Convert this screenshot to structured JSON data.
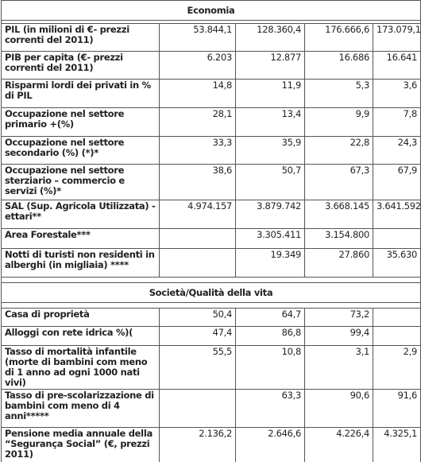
{
  "sections": [
    {
      "title": "Economia",
      "rows": [
        {
          "label": "PIL (in milioni di €- prezzi correnti del 2011)",
          "values": [
            "53.844,1",
            "128.360,4",
            "176.666,6",
            "173.079,1"
          ]
        },
        {
          "label": "PIB per capita (€- prezzi correnti del 2011)",
          "values": [
            "6.203",
            "12.877",
            "16.686",
            "16.641"
          ]
        },
        {
          "label": "Risparmi lordi dei privati in % di PIL",
          "values": [
            "14,8",
            "11,9",
            "5,3",
            "3,6"
          ]
        },
        {
          "label": "Occupazione nel settore primario +(%)",
          "values": [
            "28,1",
            "13,4",
            "9,9",
            "7,8"
          ]
        },
        {
          "label": "Occupazione nel settore secondario (%) (*)*",
          "values": [
            "33,3",
            "35,9",
            "22,8",
            "24,3"
          ]
        },
        {
          "label": "Occupazione nel settore sterziario – commercio e servizi (%)*",
          "values": [
            "38,6",
            "50,7",
            "67,3",
            "67,9"
          ]
        },
        {
          "label": "SAL (Sup. Agricola Utilizzata) -ettari**",
          "values": [
            "4.974.157",
            "3.879.742",
            "3.668.145",
            "3.641.592"
          ]
        },
        {
          "label": "Area Forestale***",
          "values": [
            null,
            "3.305.411",
            "3.154.800",
            null
          ]
        },
        {
          "label": "Notti di turisti non residenti in alberghi (in migliaia) ****",
          "values": [
            null,
            "19.349",
            "27.860",
            "35.630"
          ]
        }
      ]
    },
    {
      "title": "Società/Qualità della vita",
      "rows": [
        {
          "label": "Casa di proprietà",
          "values": [
            "50,4",
            "64,7",
            "73,2",
            null
          ]
        },
        {
          "label": "Alloggi con rete idrica %)(",
          "values": [
            "47,4",
            "86,8",
            "99,4",
            null
          ]
        },
        {
          "label": "Tasso di mortalità infantile (morte di bambini com meno di 1 anno ad ogni 1000 nati vivi)",
          "values": [
            "55,5",
            "10,8",
            "3,1",
            "2,9"
          ]
        },
        {
          "label": "Tasso di pre-scolarizzazione di bambini com meno di 4 anni*****",
          "values": [
            null,
            "63,3",
            "90,6",
            "91,6"
          ]
        },
        {
          "label": "Pensione media annuale della “Segurança Social” (€, prezzi 2011)",
          "values": [
            "2.136,2",
            "2.646,6",
            "4.226,4",
            "4.325,1"
          ]
        }
      ]
    }
  ]
}
